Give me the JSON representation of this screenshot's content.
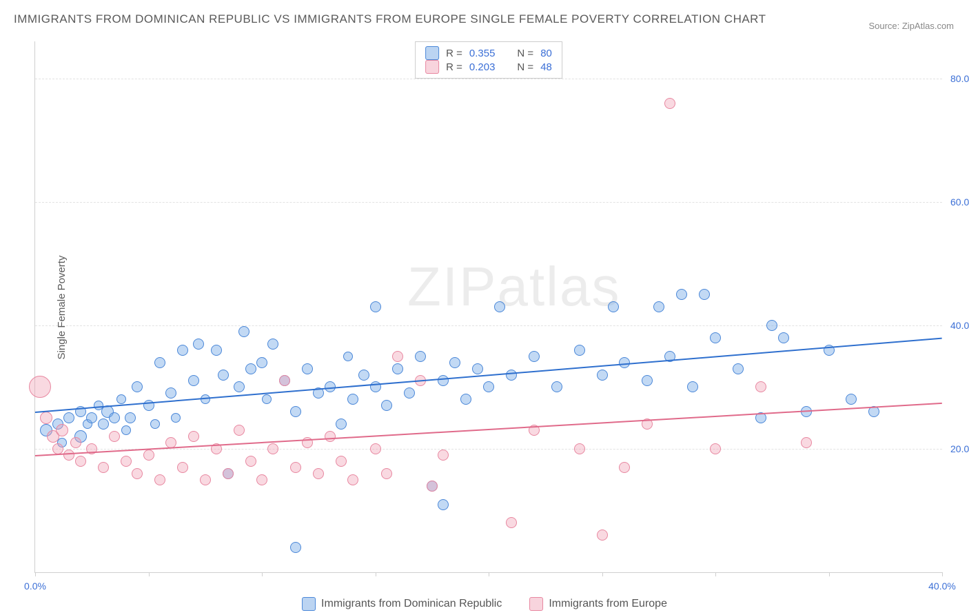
{
  "title": "IMMIGRANTS FROM DOMINICAN REPUBLIC VS IMMIGRANTS FROM EUROPE SINGLE FEMALE POVERTY CORRELATION CHART",
  "source": "Source: ZipAtlas.com",
  "ylabel": "Single Female Poverty",
  "watermark": "ZIPatlas",
  "chart": {
    "type": "scatter",
    "xlim": [
      0,
      40
    ],
    "ylim": [
      0,
      86
    ],
    "y_ticks": [
      20,
      40,
      60,
      80
    ],
    "y_tick_labels": [
      "20.0%",
      "40.0%",
      "60.0%",
      "80.0%"
    ],
    "x_ticks": [
      0,
      5,
      10,
      15,
      20,
      25,
      30,
      35,
      40
    ],
    "x_tick_labels": {
      "0": "0.0%",
      "40": "40.0%"
    },
    "grid_color": "#e2e2e2",
    "axis_color": "#cfcfcf",
    "background_color": "#ffffff",
    "tick_label_color": "#3b6fd6",
    "series": [
      {
        "name": "Immigrants from Dominican Republic",
        "key": "blue",
        "fill": "rgba(120,170,230,0.45)",
        "stroke": "#4a87d8",
        "R": "0.355",
        "N": "80",
        "trend": {
          "y_at_x0": 26,
          "y_at_x40": 38,
          "color": "#2e6fce",
          "width": 2
        },
        "points": [
          {
            "x": 0.5,
            "y": 23,
            "r": 9
          },
          {
            "x": 1,
            "y": 24,
            "r": 8
          },
          {
            "x": 1.2,
            "y": 21,
            "r": 7
          },
          {
            "x": 1.5,
            "y": 25,
            "r": 8
          },
          {
            "x": 2,
            "y": 22,
            "r": 9
          },
          {
            "x": 2,
            "y": 26,
            "r": 8
          },
          {
            "x": 2.3,
            "y": 24,
            "r": 7
          },
          {
            "x": 2.5,
            "y": 25,
            "r": 8
          },
          {
            "x": 2.8,
            "y": 27,
            "r": 7
          },
          {
            "x": 3,
            "y": 24,
            "r": 8
          },
          {
            "x": 3.2,
            "y": 26,
            "r": 9
          },
          {
            "x": 3.5,
            "y": 25,
            "r": 8
          },
          {
            "x": 3.8,
            "y": 28,
            "r": 7
          },
          {
            "x": 4,
            "y": 23,
            "r": 7
          },
          {
            "x": 4.2,
            "y": 25,
            "r": 8
          },
          {
            "x": 4.5,
            "y": 30,
            "r": 8
          },
          {
            "x": 5,
            "y": 27,
            "r": 8
          },
          {
            "x": 5.3,
            "y": 24,
            "r": 7
          },
          {
            "x": 5.5,
            "y": 34,
            "r": 8
          },
          {
            "x": 6,
            "y": 29,
            "r": 8
          },
          {
            "x": 6.2,
            "y": 25,
            "r": 7
          },
          {
            "x": 6.5,
            "y": 36,
            "r": 8
          },
          {
            "x": 7,
            "y": 31,
            "r": 8
          },
          {
            "x": 7.2,
            "y": 37,
            "r": 8
          },
          {
            "x": 7.5,
            "y": 28,
            "r": 7
          },
          {
            "x": 8,
            "y": 36,
            "r": 8
          },
          {
            "x": 8.3,
            "y": 32,
            "r": 8
          },
          {
            "x": 8.5,
            "y": 16,
            "r": 8
          },
          {
            "x": 9,
            "y": 30,
            "r": 8
          },
          {
            "x": 9.2,
            "y": 39,
            "r": 8
          },
          {
            "x": 9.5,
            "y": 33,
            "r": 8
          },
          {
            "x": 10,
            "y": 34,
            "r": 8
          },
          {
            "x": 10.2,
            "y": 28,
            "r": 7
          },
          {
            "x": 10.5,
            "y": 37,
            "r": 8
          },
          {
            "x": 11,
            "y": 31,
            "r": 8
          },
          {
            "x": 11.5,
            "y": 26,
            "r": 8
          },
          {
            "x": 11.5,
            "y": 4,
            "r": 8
          },
          {
            "x": 12,
            "y": 33,
            "r": 8
          },
          {
            "x": 12.5,
            "y": 29,
            "r": 8
          },
          {
            "x": 13,
            "y": 30,
            "r": 8
          },
          {
            "x": 13.5,
            "y": 24,
            "r": 8
          },
          {
            "x": 13.8,
            "y": 35,
            "r": 7
          },
          {
            "x": 14,
            "y": 28,
            "r": 8
          },
          {
            "x": 14.5,
            "y": 32,
            "r": 8
          },
          {
            "x": 15,
            "y": 30,
            "r": 8
          },
          {
            "x": 15,
            "y": 43,
            "r": 8
          },
          {
            "x": 15.5,
            "y": 27,
            "r": 8
          },
          {
            "x": 16,
            "y": 33,
            "r": 8
          },
          {
            "x": 16.5,
            "y": 29,
            "r": 8
          },
          {
            "x": 17,
            "y": 35,
            "r": 8
          },
          {
            "x": 17.5,
            "y": 14,
            "r": 8
          },
          {
            "x": 18,
            "y": 31,
            "r": 8
          },
          {
            "x": 18,
            "y": 11,
            "r": 8
          },
          {
            "x": 18.5,
            "y": 34,
            "r": 8
          },
          {
            "x": 19,
            "y": 28,
            "r": 8
          },
          {
            "x": 19.5,
            "y": 33,
            "r": 8
          },
          {
            "x": 20,
            "y": 30,
            "r": 8
          },
          {
            "x": 20.5,
            "y": 43,
            "r": 8
          },
          {
            "x": 21,
            "y": 32,
            "r": 8
          },
          {
            "x": 22,
            "y": 35,
            "r": 8
          },
          {
            "x": 23,
            "y": 30,
            "r": 8
          },
          {
            "x": 24,
            "y": 36,
            "r": 8
          },
          {
            "x": 25,
            "y": 32,
            "r": 8
          },
          {
            "x": 25.5,
            "y": 43,
            "r": 8
          },
          {
            "x": 26,
            "y": 34,
            "r": 8
          },
          {
            "x": 27,
            "y": 31,
            "r": 8
          },
          {
            "x": 27.5,
            "y": 43,
            "r": 8
          },
          {
            "x": 28,
            "y": 35,
            "r": 8
          },
          {
            "x": 28.5,
            "y": 45,
            "r": 8
          },
          {
            "x": 29,
            "y": 30,
            "r": 8
          },
          {
            "x": 29.5,
            "y": 45,
            "r": 8
          },
          {
            "x": 30,
            "y": 38,
            "r": 8
          },
          {
            "x": 31,
            "y": 33,
            "r": 8
          },
          {
            "x": 32,
            "y": 25,
            "r": 8
          },
          {
            "x": 32.5,
            "y": 40,
            "r": 8
          },
          {
            "x": 33,
            "y": 38,
            "r": 8
          },
          {
            "x": 34,
            "y": 26,
            "r": 8
          },
          {
            "x": 35,
            "y": 36,
            "r": 8
          },
          {
            "x": 36,
            "y": 28,
            "r": 8
          },
          {
            "x": 37,
            "y": 26,
            "r": 8
          }
        ]
      },
      {
        "name": "Immigrants from Europe",
        "key": "pink",
        "fill": "rgba(240,160,180,0.4)",
        "stroke": "#e887a0",
        "R": "0.203",
        "N": "48",
        "trend": {
          "y_at_x0": 19,
          "y_at_x40": 27.5,
          "color": "#e06a8a",
          "width": 2
        },
        "points": [
          {
            "x": 0.2,
            "y": 30,
            "r": 16
          },
          {
            "x": 0.5,
            "y": 25,
            "r": 9
          },
          {
            "x": 0.8,
            "y": 22,
            "r": 9
          },
          {
            "x": 1,
            "y": 20,
            "r": 8
          },
          {
            "x": 1.2,
            "y": 23,
            "r": 9
          },
          {
            "x": 1.5,
            "y": 19,
            "r": 8
          },
          {
            "x": 1.8,
            "y": 21,
            "r": 8
          },
          {
            "x": 2,
            "y": 18,
            "r": 8
          },
          {
            "x": 2.5,
            "y": 20,
            "r": 8
          },
          {
            "x": 3,
            "y": 17,
            "r": 8
          },
          {
            "x": 3.5,
            "y": 22,
            "r": 8
          },
          {
            "x": 4,
            "y": 18,
            "r": 8
          },
          {
            "x": 4.5,
            "y": 16,
            "r": 8
          },
          {
            "x": 5,
            "y": 19,
            "r": 8
          },
          {
            "x": 5.5,
            "y": 15,
            "r": 8
          },
          {
            "x": 6,
            "y": 21,
            "r": 8
          },
          {
            "x": 6.5,
            "y": 17,
            "r": 8
          },
          {
            "x": 7,
            "y": 22,
            "r": 8
          },
          {
            "x": 7.5,
            "y": 15,
            "r": 8
          },
          {
            "x": 8,
            "y": 20,
            "r": 8
          },
          {
            "x": 8.5,
            "y": 16,
            "r": 8
          },
          {
            "x": 9,
            "y": 23,
            "r": 8
          },
          {
            "x": 9.5,
            "y": 18,
            "r": 8
          },
          {
            "x": 10,
            "y": 15,
            "r": 8
          },
          {
            "x": 10.5,
            "y": 20,
            "r": 8
          },
          {
            "x": 11,
            "y": 31,
            "r": 8
          },
          {
            "x": 11.5,
            "y": 17,
            "r": 8
          },
          {
            "x": 12,
            "y": 21,
            "r": 8
          },
          {
            "x": 12.5,
            "y": 16,
            "r": 8
          },
          {
            "x": 13,
            "y": 22,
            "r": 8
          },
          {
            "x": 13.5,
            "y": 18,
            "r": 8
          },
          {
            "x": 14,
            "y": 15,
            "r": 8
          },
          {
            "x": 15,
            "y": 20,
            "r": 8
          },
          {
            "x": 15.5,
            "y": 16,
            "r": 8
          },
          {
            "x": 16,
            "y": 35,
            "r": 8
          },
          {
            "x": 17,
            "y": 31,
            "r": 8
          },
          {
            "x": 17.5,
            "y": 14,
            "r": 8
          },
          {
            "x": 18,
            "y": 19,
            "r": 8
          },
          {
            "x": 21,
            "y": 8,
            "r": 8
          },
          {
            "x": 22,
            "y": 23,
            "r": 8
          },
          {
            "x": 24,
            "y": 20,
            "r": 8
          },
          {
            "x": 25,
            "y": 6,
            "r": 8
          },
          {
            "x": 26,
            "y": 17,
            "r": 8
          },
          {
            "x": 27,
            "y": 24,
            "r": 8
          },
          {
            "x": 28,
            "y": 76,
            "r": 8
          },
          {
            "x": 30,
            "y": 20,
            "r": 8
          },
          {
            "x": 32,
            "y": 30,
            "r": 8
          },
          {
            "x": 34,
            "y": 21,
            "r": 8
          }
        ]
      }
    ]
  },
  "legend_top": {
    "rows": [
      {
        "swatch": "blue",
        "r_label": "R =",
        "r_val": "0.355",
        "n_label": "N =",
        "n_val": "80"
      },
      {
        "swatch": "pink",
        "r_label": "R =",
        "r_val": "0.203",
        "n_label": "N =",
        "n_val": "48"
      }
    ]
  },
  "legend_bottom": {
    "items": [
      {
        "swatch": "blue",
        "label": "Immigrants from Dominican Republic"
      },
      {
        "swatch": "pink",
        "label": "Immigrants from Europe"
      }
    ]
  }
}
